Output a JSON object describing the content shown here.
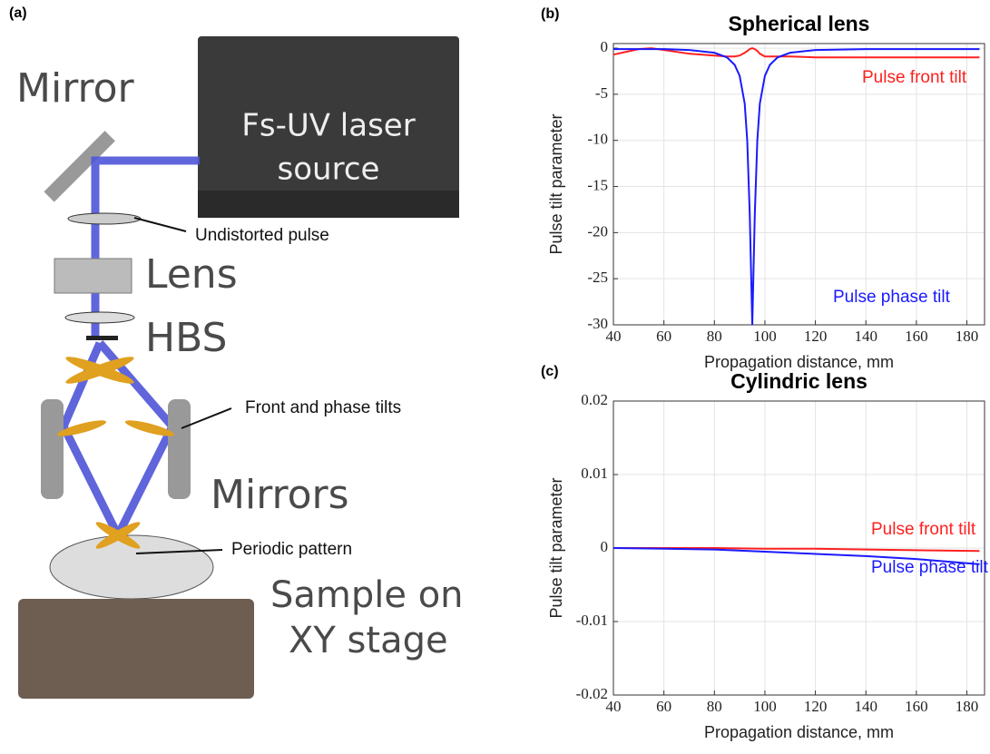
{
  "diagram": {
    "panel_label": "(a)",
    "labels": [
      "Mirror",
      "Fs-UV laser",
      "source",
      "Undistorted pulse",
      "Lens",
      "HBS",
      "Front and phase tilts",
      "Mirrors",
      "Periodic pattern",
      "Sample on",
      "XY stage"
    ]
  },
  "chart_data": [
    {
      "type": "line",
      "panel_label": "(b)",
      "title": "Spherical lens",
      "x_label": "Propagation distance, mm",
      "y_label": "Pulse tilt parameter",
      "x": [
        40,
        45,
        50,
        55,
        60,
        70,
        80,
        85,
        88,
        90,
        92,
        93,
        94,
        95,
        96,
        97,
        98,
        100,
        102,
        105,
        110,
        120,
        140,
        160,
        185
      ],
      "series": [
        {
          "name": "Pulse front tilt",
          "color": "#ff2020",
          "values": [
            -0.7,
            -0.4,
            -0.1,
            0,
            -0.2,
            -0.6,
            -0.8,
            -0.9,
            -0.9,
            -0.8,
            -0.5,
            -0.3,
            -0.1,
            0,
            -0.1,
            -0.3,
            -0.6,
            -0.9,
            -0.9,
            -0.9,
            -0.9,
            -1,
            -1,
            -1,
            -1
          ]
        },
        {
          "name": "Pulse phase tilt",
          "color": "#1a1aff",
          "values": [
            -0.1,
            -0.1,
            -0.1,
            -0.1,
            -0.1,
            -0.2,
            -0.5,
            -1,
            -1.8,
            -3,
            -6,
            -10,
            -18,
            -30,
            -18,
            -10,
            -6,
            -3,
            -1.8,
            -1,
            -0.5,
            -0.2,
            -0.1,
            -0.1,
            -0.1
          ]
        }
      ],
      "xlim": [
        40,
        187
      ],
      "ylim": [
        -30,
        0.5
      ],
      "xticks": [
        40,
        60,
        80,
        100,
        120,
        140,
        160,
        180
      ],
      "yticks": [
        0,
        -5,
        -10,
        -15,
        -20,
        -25,
        -30
      ],
      "grid": true
    },
    {
      "type": "line",
      "panel_label": "(c)",
      "title": "Cylindric lens",
      "x_label": "Propagation distance, mm",
      "y_label": "Pulse tilt parameter",
      "x": [
        40,
        60,
        80,
        100,
        120,
        140,
        160,
        185
      ],
      "series": [
        {
          "name": "Pulse front tilt",
          "color": "#ff2020",
          "values": [
            0,
            0,
            0,
            -0.0001,
            -0.0001,
            -0.0002,
            -0.0003,
            -0.0004
          ]
        },
        {
          "name": "Pulse phase tilt",
          "color": "#1a1aff",
          "values": [
            0,
            -0.0001,
            -0.0002,
            -0.0005,
            -0.0008,
            -0.0011,
            -0.0015,
            -0.0022
          ]
        }
      ],
      "xlim": [
        40,
        187
      ],
      "ylim": [
        -0.02,
        0.02
      ],
      "xticks": [
        40,
        60,
        80,
        100,
        120,
        140,
        160,
        180
      ],
      "yticks": [
        0.02,
        0.01,
        0,
        -0.01,
        -0.02
      ],
      "grid": true
    }
  ]
}
